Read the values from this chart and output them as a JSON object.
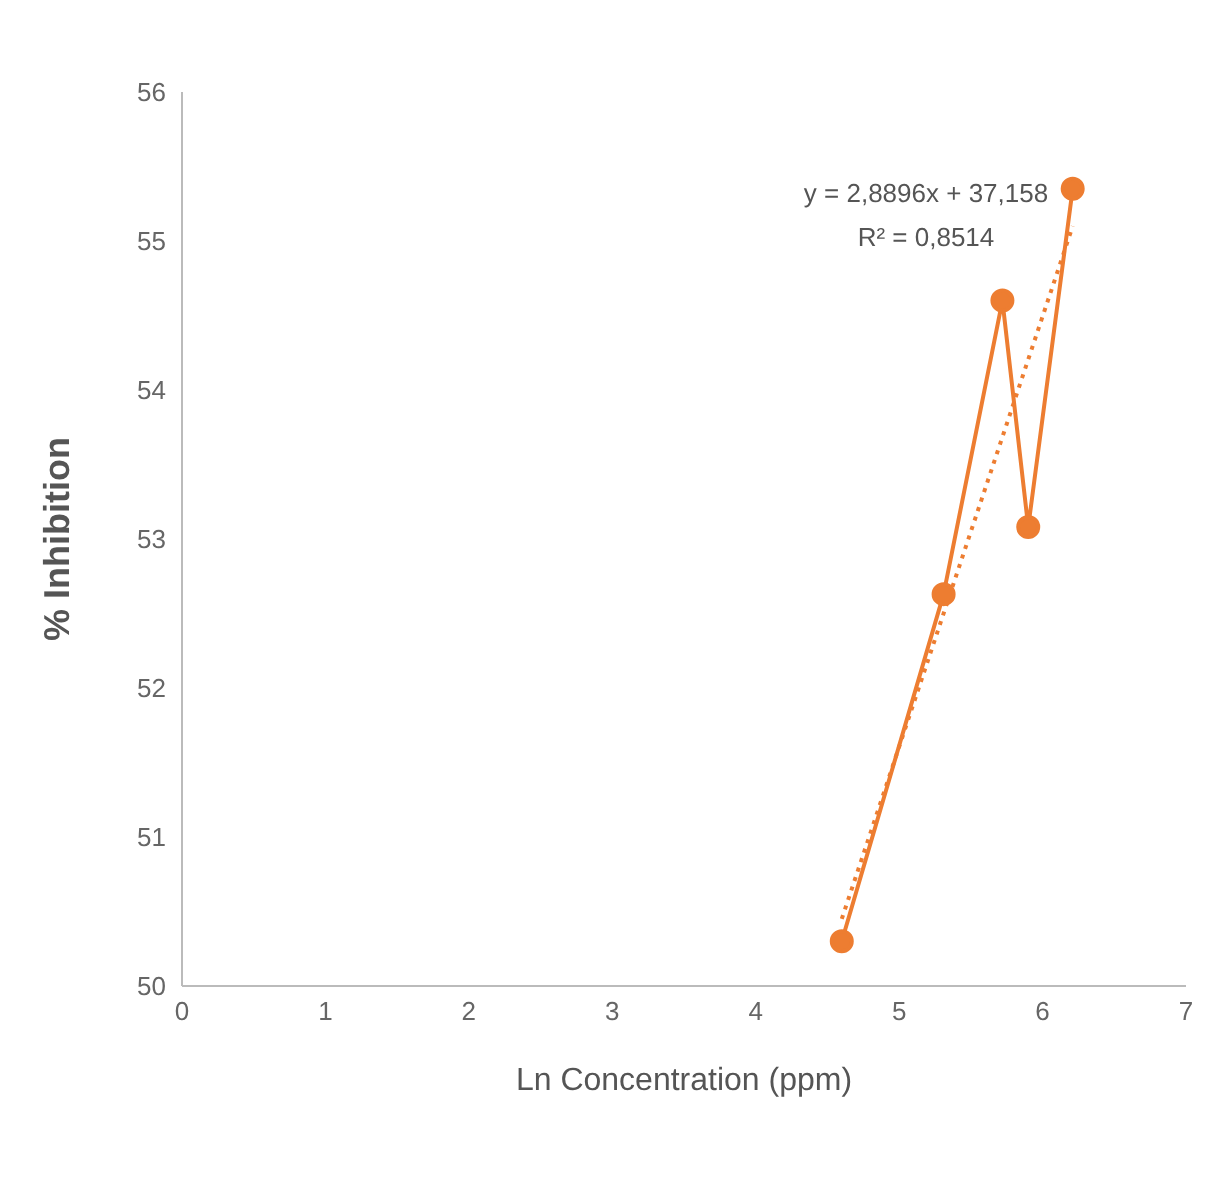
{
  "chart_data": {
    "type": "line",
    "xlabel": "Ln Concentration (ppm)",
    "ylabel": "% Inhibition",
    "xlim": [
      0,
      7
    ],
    "xticks": [
      0,
      1,
      2,
      3,
      4,
      5,
      6,
      7
    ],
    "ylim": [
      50,
      56
    ],
    "yticks": [
      50,
      51,
      52,
      53,
      54,
      55,
      56
    ],
    "grid": false,
    "series": [
      {
        "color": "#ed7d31",
        "marker": "circle",
        "line_style": "solid",
        "x": [
          4.6,
          5.31,
          5.72,
          5.9,
          6.21
        ],
        "values": [
          50.3,
          52.63,
          54.6,
          53.08,
          55.35
        ]
      },
      {
        "color": "#ed7d31",
        "marker": "none",
        "line_style": "dotted",
        "x": [
          4.6,
          6.21
        ],
        "values": [
          50.45,
          55.1
        ]
      }
    ],
    "annotations": [
      "y = 2,8896x + 37,158",
      "R² = 0,8514"
    ]
  }
}
